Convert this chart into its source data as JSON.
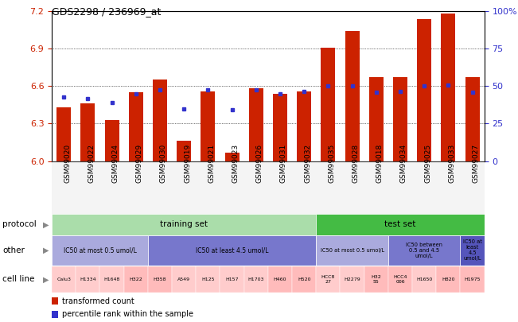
{
  "title": "GDS2298 / 236969_at",
  "gsm_labels": [
    "GSM99020",
    "GSM99022",
    "GSM99024",
    "GSM99029",
    "GSM99030",
    "GSM99019",
    "GSM99021",
    "GSM99023",
    "GSM99026",
    "GSM99031",
    "GSM99032",
    "GSM99035",
    "GSM99028",
    "GSM99018",
    "GSM99034",
    "GSM99025",
    "GSM99033",
    "GSM99027"
  ],
  "bar_values": [
    6.43,
    6.46,
    6.33,
    6.55,
    6.65,
    6.16,
    6.56,
    6.07,
    6.58,
    6.54,
    6.56,
    6.91,
    7.04,
    6.67,
    6.67,
    7.14,
    7.18,
    6.67
  ],
  "dot_values": [
    6.51,
    6.5,
    6.47,
    6.54,
    6.57,
    6.42,
    6.57,
    6.41,
    6.57,
    6.54,
    6.56,
    6.6,
    6.6,
    6.55,
    6.56,
    6.6,
    6.61,
    6.55
  ],
  "ymin": 6.0,
  "ymax": 7.2,
  "yticks": [
    6.0,
    6.3,
    6.6,
    6.9,
    7.2
  ],
  "right_yticks": [
    0,
    25,
    50,
    75,
    100
  ],
  "right_ytick_labels": [
    "0",
    "25",
    "50",
    "75",
    "100%"
  ],
  "bar_color": "#CC2200",
  "dot_color": "#3333CC",
  "protocol_training_color": "#AADDAA",
  "protocol_test_color": "#44BB44",
  "other_light_color": "#AAAADD",
  "other_mid_color": "#7777CC",
  "other_dark_color": "#5555BB",
  "n_training": 11,
  "n_test": 7,
  "protocol_row_label": "protocol",
  "other_row_label": "other",
  "cell_line_row_label": "cell line",
  "training_set_label": "training set",
  "test_set_label": "test set",
  "other_labels_training": [
    "IC50 at most 0.5 umol/L",
    "IC50 at least 4.5 umol/L"
  ],
  "other_training_counts": [
    4,
    7
  ],
  "other_labels_test": [
    "IC50 at most 0.5 umol/L",
    "IC50 between\n0.5 and 4.5\numol/L",
    "IC50 at\nleast\n4.5\numol/L"
  ],
  "other_test_counts": [
    3,
    3,
    1
  ],
  "cell_line_labels": [
    "Calu3",
    "H1334",
    "H1648",
    "H322",
    "H358",
    "A549",
    "H125",
    "H157",
    "H1703",
    "H460",
    "H520",
    "HCC8\n27",
    "H2279",
    "H32\n55",
    "HCC4\n006",
    "H1650",
    "H820",
    "H1975"
  ],
  "legend_red_label": "transformed count",
  "legend_blue_label": "percentile rank within the sample",
  "train_cell_colors": [
    "#FFCCCC",
    "#FFCCCC",
    "#FFCCCC",
    "#FFBBBB",
    "#FFBBBB",
    "#FFCCCC",
    "#FFCCCC",
    "#FFCCCC",
    "#FFCCCC",
    "#FFBBBB",
    "#FFBBBB"
  ],
  "test_cell_colors": [
    "#FFCCCC",
    "#FFCCCC",
    "#FFBBBB",
    "#FFBBBB",
    "#FFCCCC",
    "#FFBBBB",
    "#FFBBBB"
  ]
}
